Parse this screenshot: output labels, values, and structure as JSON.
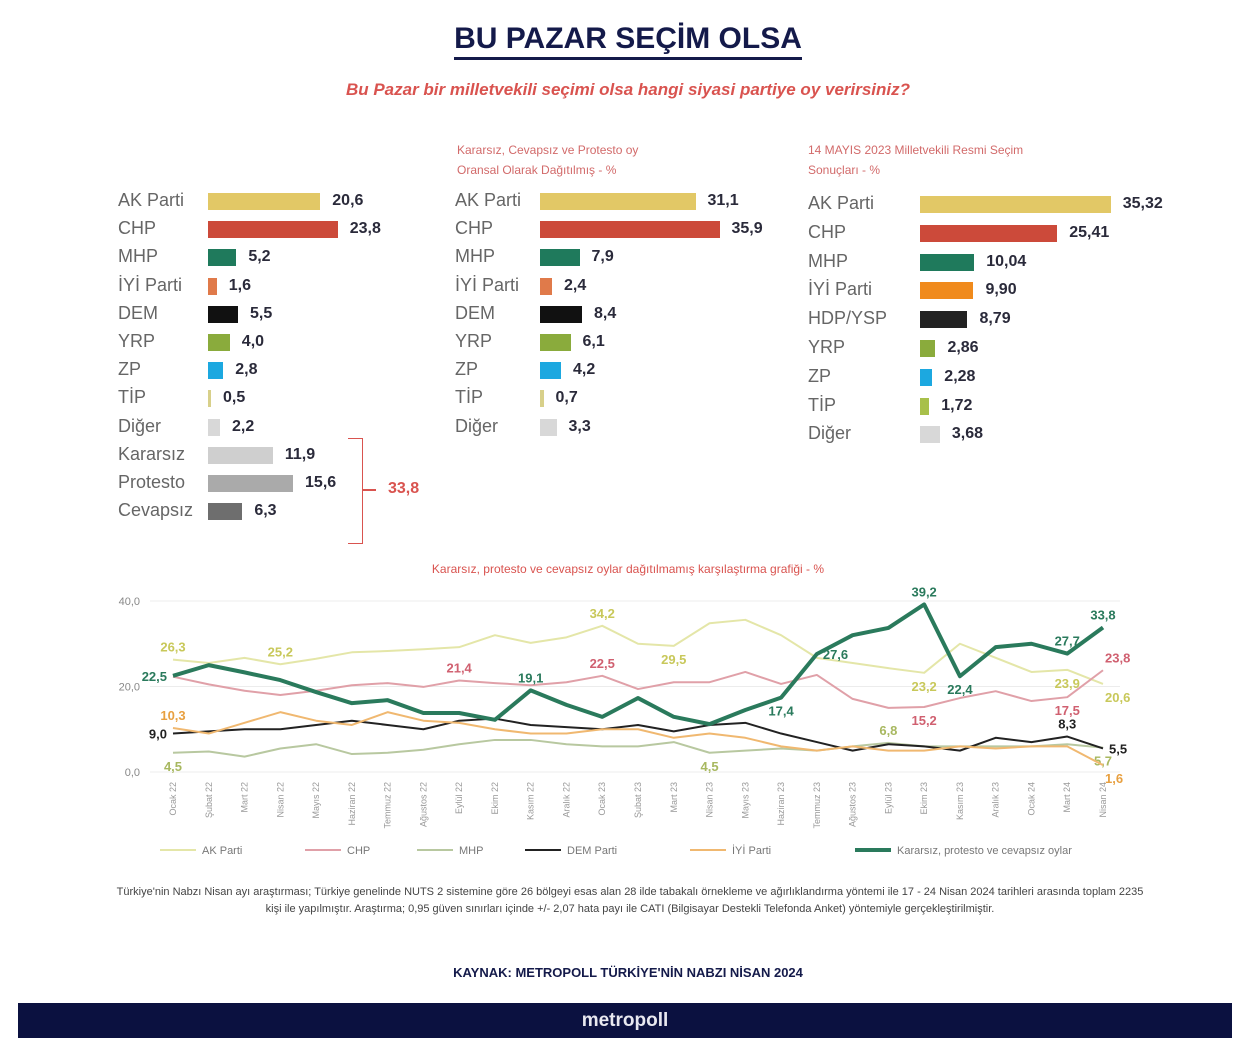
{
  "header": {
    "title": "BU PAZAR SEÇİM OLSA",
    "subtitle": "Bu Pazar bir milletvekili seçimi olsa hangi siyasi partiye oy verirsiniz?"
  },
  "chart_data": [
    {
      "type": "bar",
      "title": "",
      "items": [
        {
          "label": "AK Parti",
          "value": 20.6,
          "text": "20,6",
          "color": "#e2c866"
        },
        {
          "label": "CHP",
          "value": 23.8,
          "text": "23,8",
          "color": "#cc4a3a"
        },
        {
          "label": "MHP",
          "value": 5.2,
          "text": "5,2",
          "color": "#1f7a5c"
        },
        {
          "label": "İYİ Parti",
          "value": 1.6,
          "text": "1,6",
          "color": "#e07a4a"
        },
        {
          "label": "DEM",
          "value": 5.5,
          "text": "5,5",
          "color": "#111111"
        },
        {
          "label": "YRP",
          "value": 4.0,
          "text": "4,0",
          "color": "#8aab3c"
        },
        {
          "label": "ZP",
          "value": 2.8,
          "text": "2,8",
          "color": "#1ca8e0"
        },
        {
          "label": "TİP",
          "value": 0.5,
          "text": "0,5",
          "color": "#d8d08a"
        },
        {
          "label": "Diğer",
          "value": 2.2,
          "text": "2,2",
          "color": "#d8d8d8"
        },
        {
          "label": "Kararsız",
          "value": 11.9,
          "text": "11,9",
          "color": "#cfcfcf"
        },
        {
          "label": "Protesto",
          "value": 15.6,
          "text": "15,6",
          "color": "#aaaaaa"
        },
        {
          "label": "Cevapsız",
          "value": 6.3,
          "text": "6,3",
          "color": "#6e6e6e"
        }
      ],
      "bracket_total": "33,8"
    },
    {
      "type": "bar",
      "title": "Kararsız, Cevapsız ve Protesto oy Oransal Olarak Dağıtılmış - %",
      "title_lines": [
        "Kararsız, Cevapsız ve Protesto oy",
        "Oransal Olarak Dağıtılmış - %"
      ],
      "items": [
        {
          "label": "AK Parti",
          "value": 31.1,
          "text": "31,1",
          "color": "#e2c866"
        },
        {
          "label": "CHP",
          "value": 35.9,
          "text": "35,9",
          "color": "#cc4a3a"
        },
        {
          "label": "MHP",
          "value": 7.9,
          "text": "7,9",
          "color": "#1f7a5c"
        },
        {
          "label": "İYİ Parti",
          "value": 2.4,
          "text": "2,4",
          "color": "#e07a4a"
        },
        {
          "label": "DEM",
          "value": 8.4,
          "text": "8,4",
          "color": "#111111"
        },
        {
          "label": "YRP",
          "value": 6.1,
          "text": "6,1",
          "color": "#8aab3c"
        },
        {
          "label": "ZP",
          "value": 4.2,
          "text": "4,2",
          "color": "#1ca8e0"
        },
        {
          "label": "TİP",
          "value": 0.7,
          "text": "0,7",
          "color": "#d8d08a"
        },
        {
          "label": "Diğer",
          "value": 3.3,
          "text": "3,3",
          "color": "#d8d8d8"
        }
      ]
    },
    {
      "type": "bar",
      "title": "14 MAYIS 2023 Milletvekili Resmi Seçim Sonuçları - %",
      "title_lines": [
        "14 MAYIS 2023 Milletvekili Resmi Seçim",
        "Sonuçları - %"
      ],
      "items": [
        {
          "label": "AK Parti",
          "value": 35.32,
          "text": "35,32",
          "color": "#e2c866"
        },
        {
          "label": "CHP",
          "value": 25.41,
          "text": "25,41",
          "color": "#cc4a3a"
        },
        {
          "label": "MHP",
          "value": 10.04,
          "text": "10,04",
          "color": "#1f7a5c"
        },
        {
          "label": "İYİ Parti",
          "value": 9.9,
          "text": "9,90",
          "color": "#f08a1c"
        },
        {
          "label": "HDP/YSP",
          "value": 8.79,
          "text": "8,79",
          "color": "#222222"
        },
        {
          "label": "YRP",
          "value": 2.86,
          "text": "2,86",
          "color": "#8aab3c"
        },
        {
          "label": "ZP",
          "value": 2.28,
          "text": "2,28",
          "color": "#1ca8e0"
        },
        {
          "label": "TİP",
          "value": 1.72,
          "text": "1,72",
          "color": "#a8c04a"
        },
        {
          "label": "Diğer",
          "value": 3.68,
          "text": "3,68",
          "color": "#d8d8d8"
        }
      ]
    },
    {
      "type": "line",
      "title": "Kararsız, protesto ve cevapsız oylar dağıtılmamış karşılaştırma grafiği - %",
      "ylim": [
        0,
        40
      ],
      "yticks": [
        "0,0",
        "20,0",
        "40,0"
      ],
      "grid": true,
      "legend": "bottom",
      "x": [
        "Ocak 22",
        "Şubat 22",
        "Mart 22",
        "Nisan 22",
        "Mayıs 22",
        "Haziran 22",
        "Temmuz 22",
        "Ağustos 22",
        "Eylül 22",
        "Ekim 22",
        "Kasım 22",
        "Aralık 22",
        "Ocak 23",
        "Şubat 23",
        "Mart 23",
        "Nisan 23",
        "Mayıs 23",
        "Haziran 23",
        "Temmuz 23",
        "Ağustos 23",
        "Eylül 23",
        "Ekim 23",
        "Kasım 23",
        "Aralık 23",
        "Ocak 24",
        "Mart 24",
        "Nisan 24"
      ],
      "series": [
        {
          "name": "AK Parti",
          "color": "#e4e6a8",
          "width": 2,
          "values": [
            26.3,
            25.5,
            26.7,
            25.2,
            26.5,
            28,
            28.3,
            28.7,
            29.2,
            32,
            30.2,
            31.5,
            34.2,
            30,
            29.5,
            34.8,
            35.6,
            32,
            26.7,
            25.5,
            24.3,
            23.2,
            30,
            26.7,
            23.4,
            23.9,
            20.6
          ],
          "labels": [
            {
              "i": 0,
              "text": "26,3",
              "pos": "above"
            },
            {
              "i": 3,
              "text": "25,2",
              "pos": "above"
            },
            {
              "i": 12,
              "text": "34,2",
              "pos": "above"
            },
            {
              "i": 14,
              "text": "29,5",
              "pos": "below"
            },
            {
              "i": 21,
              "text": "23,2",
              "pos": "below"
            },
            {
              "i": 25,
              "text": "23,9",
              "pos": "below"
            },
            {
              "i": 26,
              "text": "20,6",
              "pos": "belowright"
            }
          ],
          "label_color": "#c8c85a"
        },
        {
          "name": "CHP",
          "color": "#e0a0a8",
          "width": 2,
          "values": [
            22.3,
            20.5,
            19,
            18,
            19,
            20.3,
            20.8,
            19.9,
            21.4,
            20.8,
            20.3,
            21,
            22.5,
            19.4,
            21,
            21,
            23.4,
            20.6,
            22.7,
            17.1,
            15,
            15.2,
            17.3,
            18.9,
            16.6,
            17.5,
            23.8
          ],
          "labels": [
            {
              "i": 8,
              "text": "21,4",
              "pos": "above"
            },
            {
              "i": 12,
              "text": "22,5",
              "pos": "above"
            },
            {
              "i": 21,
              "text": "15,2",
              "pos": "below"
            },
            {
              "i": 25,
              "text": "17,5",
              "pos": "below"
            },
            {
              "i": 26,
              "text": "23,8",
              "pos": "aboveright"
            }
          ],
          "label_color": "#d06070"
        },
        {
          "name": "MHP",
          "color": "#b8c8a0",
          "width": 2,
          "values": [
            4.5,
            4.8,
            3.6,
            5.5,
            6.5,
            4.2,
            4.5,
            5.2,
            6.5,
            7.5,
            7.5,
            6.5,
            6,
            6,
            7,
            4.5,
            5,
            5.5,
            5,
            6,
            6.8,
            6,
            6,
            6,
            6,
            6.5,
            5.7
          ],
          "labels": [
            {
              "i": 0,
              "text": "4,5",
              "pos": "below"
            },
            {
              "i": 15,
              "text": "4,5",
              "pos": "below"
            },
            {
              "i": 20,
              "text": "6,8",
              "pos": "above"
            },
            {
              "i": 26,
              "text": "5,7",
              "pos": "below"
            }
          ],
          "label_color": "#a8b860"
        },
        {
          "name": "DEM Parti",
          "color": "#222222",
          "width": 2,
          "values": [
            9.0,
            9.5,
            10,
            10,
            11,
            12,
            11,
            10,
            12,
            12.5,
            11,
            10.5,
            10,
            11,
            9.5,
            11,
            11.5,
            9,
            7,
            5,
            6.5,
            6,
            5,
            8,
            7,
            8.3,
            5.5
          ],
          "labels": [
            {
              "i": 0,
              "text": "9,0",
              "pos": "left"
            },
            {
              "i": 25,
              "text": "8,3",
              "pos": "above"
            },
            {
              "i": 26,
              "text": "5,5",
              "pos": "right"
            }
          ],
          "label_color": "#222222"
        },
        {
          "name": "İYİ Parti",
          "color": "#f0b870",
          "width": 2,
          "values": [
            10.3,
            9,
            11.5,
            14,
            12,
            11,
            14,
            12,
            11.5,
            10,
            9,
            9,
            10,
            10,
            8,
            9,
            8,
            6,
            5,
            6,
            5,
            5,
            6,
            5.5,
            6,
            6,
            1.6
          ],
          "labels": [
            {
              "i": 0,
              "text": "10,3",
              "pos": "above"
            },
            {
              "i": 26,
              "text": "1,6",
              "pos": "belowright"
            }
          ],
          "label_color": "#e8a040"
        },
        {
          "name": "Kararsız, protesto ve cevapsız oylar",
          "color": "#2a7a5c",
          "width": 4,
          "values": [
            22.5,
            25,
            23.3,
            21.5,
            18.7,
            16.1,
            16.8,
            13.8,
            13.8,
            12.2,
            19.1,
            15.7,
            12.9,
            17.3,
            12.9,
            11.2,
            14.5,
            17.4,
            27.6,
            32,
            33.7,
            39.2,
            22.4,
            29.2,
            30,
            27.7,
            33.8
          ],
          "labels": [
            {
              "i": 0,
              "text": "22,5",
              "pos": "left"
            },
            {
              "i": 10,
              "text": "19,1",
              "pos": "above"
            },
            {
              "i": 17,
              "text": "17,4",
              "pos": "below"
            },
            {
              "i": 18,
              "text": "27,6",
              "pos": "right"
            },
            {
              "i": 21,
              "text": "39,2",
              "pos": "above"
            },
            {
              "i": 22,
              "text": "22,4",
              "pos": "below"
            },
            {
              "i": 25,
              "text": "27,7",
              "pos": "above"
            },
            {
              "i": 26,
              "text": "33,8",
              "pos": "above"
            }
          ],
          "label_color": "#2a7a5c"
        }
      ]
    }
  ],
  "note": "Türkiye'nin Nabzı Nisan ayı araştırması; Türkiye genelinde NUTS 2 sistemine göre 26 bölgeyi esas alan 28 ilde tabakalı örnekleme ve ağırlıklandırma yöntemi ile 17 - 24 Nisan 2024 tarihleri arasında toplam 2235 kişi ile yapılmıştır. Araştırma; 0,95 güven sınırları içinde +/- 2,07 hata payı ile CATI (Bilgisayar Destekli Telefonda Anket) yöntemiyle gerçekleştirilmiştir.",
  "source": "KAYNAK: METROPOLL TÜRKİYE'NİN NABZI NİSAN 2024",
  "footer": {
    "logo": "metropoll"
  }
}
